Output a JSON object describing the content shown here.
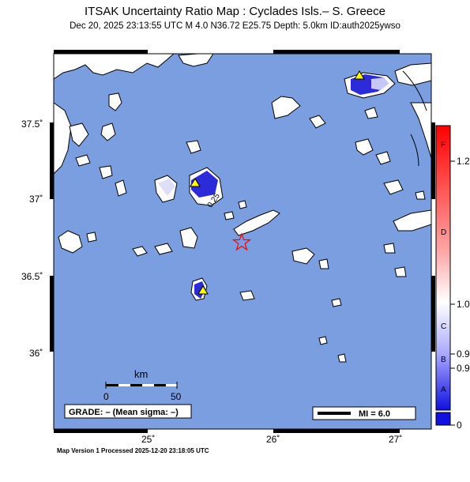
{
  "header": {
    "title": "ITSAK Uncertainty Ratio Map : Cyclades Isls.– S. Greece",
    "subtitle": "Dec 20, 2025 23:13:55 UTC   M 4.0   N36.72 E25.75   Depth: 5.0km   ID:auth2025ywso"
  },
  "axes": {
    "lat_ticks": [
      "37.5˚",
      "37˚",
      "36.5˚",
      "36˚"
    ],
    "lon_ticks": [
      "25˚",
      "26˚",
      "27˚"
    ]
  },
  "scale_bar": {
    "unit": "km",
    "start": "0",
    "end": "50"
  },
  "grade_box": "GRADE: – (Mean sigma: –)",
  "mi_legend": "MI = 6.0",
  "contour_label": "0.25",
  "colorbar": {
    "ticks": [
      "1.2",
      "1.0",
      "0.9",
      "0.9",
      "0"
    ],
    "letters": [
      "F",
      "D",
      "C",
      "B",
      "A"
    ],
    "colors": {
      "top": "#ff0000",
      "mid": "#ffffff",
      "bottom": "#0000dd"
    }
  },
  "footer": "Map Version 1 Processed 2025-12-20 23:18:05 UTC",
  "colors": {
    "sea": "#7a9ee0",
    "land": "#ffffff",
    "epicenter": "#ff0000",
    "station": "#ffff00"
  }
}
